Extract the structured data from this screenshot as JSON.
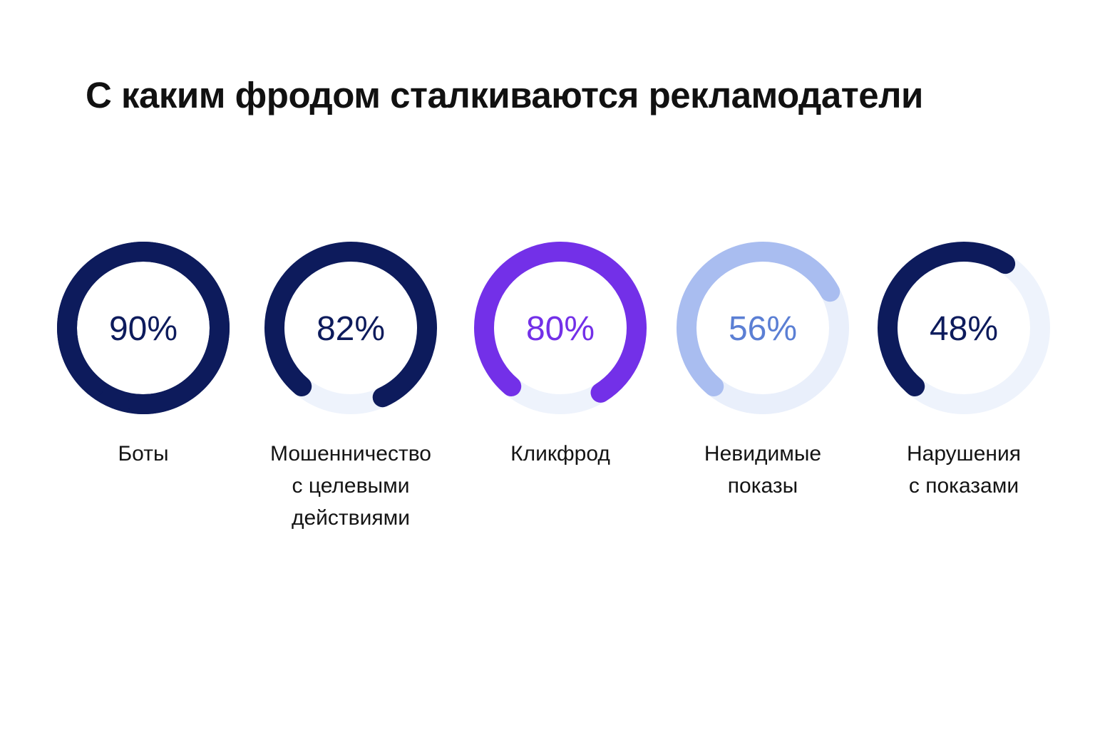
{
  "title": "С каким фродом сталкиваются рекламодатели",
  "chart_data": {
    "type": "donut",
    "title": "С каким фродом сталкиваются рекламодатели",
    "unit": "%",
    "max": 100,
    "series": [
      {
        "name": "Боты",
        "label_lines": [
          "Боты"
        ],
        "value": 90,
        "display": "90%",
        "color": "#0d1b5c",
        "text_color": "#0d1b5c",
        "track_color": "#0d1b5c"
      },
      {
        "name": "Мошенничество с целевыми действиями",
        "label_lines": [
          "Мошенничество",
          "с целевыми",
          "действиями"
        ],
        "value": 82,
        "display": "82%",
        "color": "#0d1b5c",
        "text_color": "#0d1b5c",
        "track_color": "#eef3fc"
      },
      {
        "name": "Кликфрод",
        "label_lines": [
          "Кликфрод"
        ],
        "value": 80,
        "display": "80%",
        "color": "#7330e8",
        "text_color": "#7330e8",
        "track_color": "#eef3fc"
      },
      {
        "name": "Невидимые показы",
        "label_lines": [
          "Невидимые",
          "показы"
        ],
        "value": 56,
        "display": "56%",
        "color": "#a9bdf0",
        "text_color": "#5b7fd4",
        "track_color": "#e9effb"
      },
      {
        "name": "Нарушения с показами",
        "label_lines": [
          "Нарушения",
          "с показами"
        ],
        "value": 48,
        "display": "48%",
        "color": "#0d1b5c",
        "text_color": "#0d1b5c",
        "track_color": "#eef3fc"
      }
    ]
  }
}
